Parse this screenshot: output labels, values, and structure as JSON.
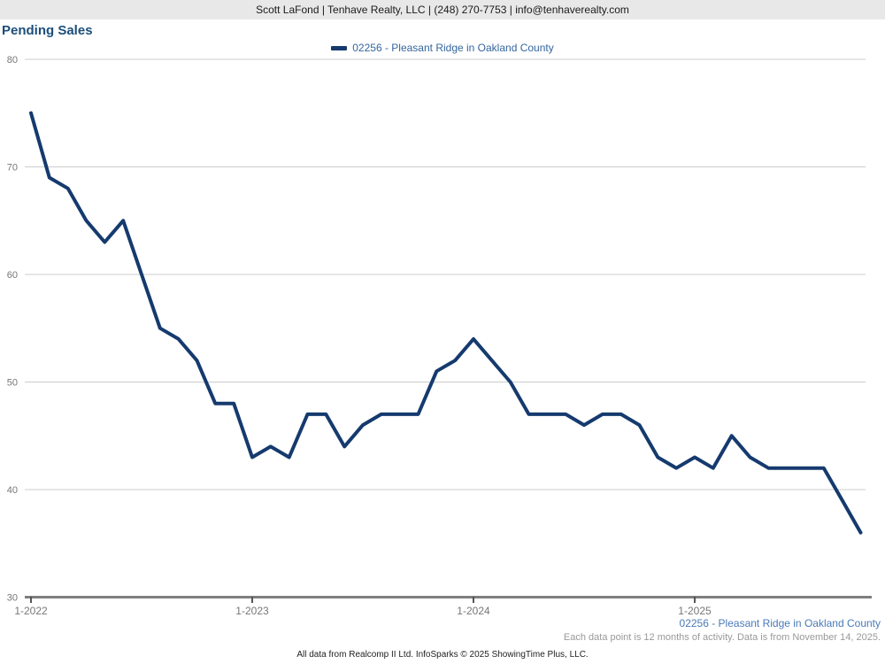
{
  "header": {
    "contact_line": "Scott LaFond | Tenhave Realty, LLC | (248) 270-7753 | info@tenhaverealty.com"
  },
  "title": "Pending Sales",
  "legend": {
    "label": "02256 - Pleasant Ridge in Oakland County"
  },
  "chart_data": {
    "type": "line",
    "title": "Pending Sales",
    "grid": "horizontal",
    "legend_position": "top-center",
    "ylim": [
      30,
      80
    ],
    "y_ticks": [
      30,
      40,
      50,
      60,
      70,
      80
    ],
    "x_tick_labels": [
      "1-2022",
      "1-2023",
      "1-2024",
      "1-2025"
    ],
    "x_tick_positions": [
      0,
      12,
      24,
      36
    ],
    "x": [
      "2022-01",
      "2022-02",
      "2022-03",
      "2022-04",
      "2022-05",
      "2022-06",
      "2022-07",
      "2022-08",
      "2022-09",
      "2022-10",
      "2022-11",
      "2022-12",
      "2023-01",
      "2023-02",
      "2023-03",
      "2023-04",
      "2023-05",
      "2023-06",
      "2023-07",
      "2023-08",
      "2023-09",
      "2023-10",
      "2023-11",
      "2023-12",
      "2024-01",
      "2024-02",
      "2024-03",
      "2024-04",
      "2024-05",
      "2024-06",
      "2024-07",
      "2024-08",
      "2024-09",
      "2024-10",
      "2024-11",
      "2024-12",
      "2025-01",
      "2025-02",
      "2025-03",
      "2025-04",
      "2025-05",
      "2025-06",
      "2025-07",
      "2025-08",
      "2025-09",
      "2025-10"
    ],
    "series": [
      {
        "name": "02256 - Pleasant Ridge in Oakland County",
        "color": "#153a6e",
        "values": [
          75,
          69,
          68,
          65,
          63,
          65,
          60,
          55,
          54,
          52,
          48,
          48,
          43,
          44,
          43,
          47,
          47,
          44,
          46,
          47,
          47,
          47,
          51,
          52,
          54,
          52,
          50,
          47,
          47,
          47,
          46,
          47,
          47,
          46,
          43,
          42,
          43,
          42,
          45,
          43,
          42,
          42,
          42,
          42,
          39,
          36
        ]
      }
    ]
  },
  "footer": {
    "series_label": "02256 - Pleasant Ridge in Oakland County",
    "note": "Each data point is 12 months of activity. Data is from November 14, 2025.",
    "attribution": "All data from Realcomp II Ltd. InfoSparks © 2025 ShowingTime Plus, LLC."
  },
  "colors": {
    "series_line": "#153a6e",
    "title_text": "#1c4e7a",
    "legend_text": "#34669e",
    "footer_series_text": "#4a7ab8",
    "gridline": "#cccccc",
    "axis_line": "#7f7f7f",
    "axis_label": "#777777",
    "note_text": "#999999",
    "header_band_bg": "#e8e8e8"
  }
}
